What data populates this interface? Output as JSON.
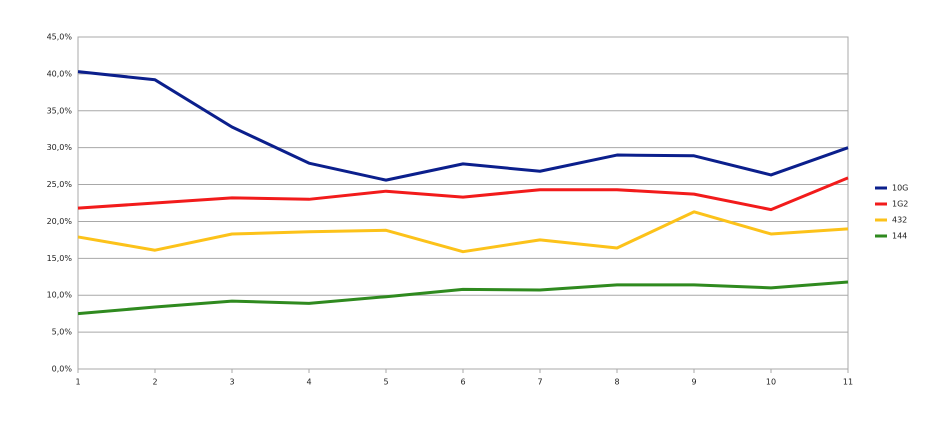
{
  "chart_data": {
    "type": "line",
    "x": [
      1,
      2,
      3,
      4,
      5,
      6,
      7,
      8,
      9,
      10,
      11
    ],
    "xlim": [
      1,
      11
    ],
    "xticks": [
      1,
      2,
      3,
      4,
      5,
      6,
      7,
      8,
      9,
      10,
      11
    ],
    "ylim": [
      0,
      45
    ],
    "yticks": [
      {
        "value": 0,
        "label": "0,0%"
      },
      {
        "value": 5,
        "label": "5,0%"
      },
      {
        "value": 10,
        "label": "10,0%"
      },
      {
        "value": 15,
        "label": "15,0%"
      },
      {
        "value": 20,
        "label": "20,0%"
      },
      {
        "value": 25,
        "label": "25,0%"
      },
      {
        "value": 30,
        "label": "30,0%"
      },
      {
        "value": 35,
        "label": "35,0%"
      },
      {
        "value": 40,
        "label": "40,0%"
      },
      {
        "value": 45,
        "label": "45,0%"
      }
    ],
    "grid": true,
    "legend": "right",
    "series": [
      {
        "name": "10G",
        "color": "#0b1f8c",
        "values": [
          40.3,
          39.2,
          32.8,
          27.9,
          25.6,
          27.8,
          26.8,
          29.0,
          28.9,
          26.3,
          30.0
        ]
      },
      {
        "name": "1G2",
        "color": "#f21b1b",
        "values": [
          21.8,
          22.5,
          23.2,
          23.0,
          24.1,
          23.3,
          24.3,
          24.3,
          23.7,
          21.6,
          25.9
        ]
      },
      {
        "name": "432",
        "color": "#fcc21a",
        "values": [
          17.9,
          16.1,
          18.3,
          18.6,
          18.8,
          15.9,
          17.5,
          16.4,
          21.3,
          18.3,
          19.0
        ]
      },
      {
        "name": "144",
        "color": "#2f8a1f",
        "values": [
          7.5,
          8.4,
          9.2,
          8.9,
          9.8,
          10.8,
          10.7,
          11.4,
          11.4,
          11.0,
          11.8
        ]
      }
    ]
  }
}
